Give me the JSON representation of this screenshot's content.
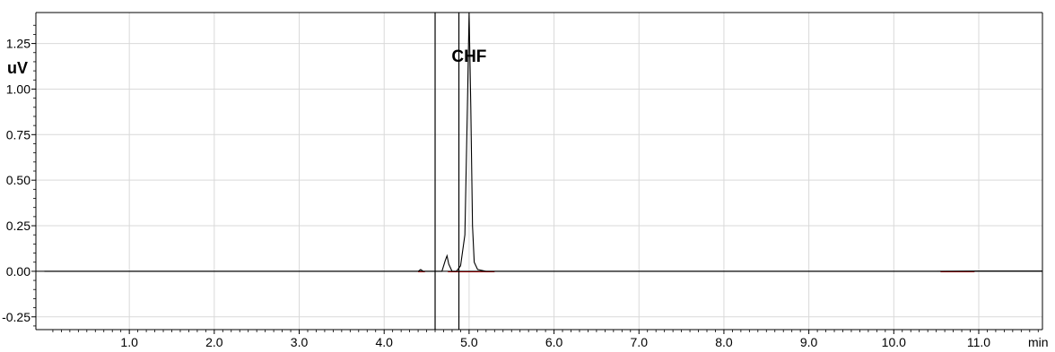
{
  "chart_data": {
    "type": "line",
    "title": "",
    "xlabel": "min",
    "ylabel": "uV",
    "xlim": [
      -0.1,
      11.75
    ],
    "ylim": [
      -0.32,
      1.42
    ],
    "x_ticks": [
      1.0,
      2.0,
      3.0,
      4.0,
      5.0,
      6.0,
      7.0,
      8.0,
      9.0,
      10.0,
      11.0
    ],
    "x_tick_labels": [
      "1.0",
      "2.0",
      "3.0",
      "4.0",
      "5.0",
      "6.0",
      "7.0",
      "8.0",
      "9.0",
      "10.0",
      "11.0"
    ],
    "y_ticks": [
      -0.25,
      0.0,
      0.25,
      0.5,
      0.75,
      1.0,
      1.25
    ],
    "y_tick_labels": [
      "-0.25",
      "0.00",
      "0.25",
      "0.50",
      "0.75",
      "1.00",
      "1.25"
    ],
    "grid": true,
    "colors": {
      "signal": "#000000",
      "baseline_marker": "#e00000",
      "grid": "#d9d9d9"
    },
    "vertical_markers": [
      4.6,
      4.88
    ],
    "annotations": [
      {
        "text": "CHF",
        "x": 5.0,
        "y": 1.15
      }
    ],
    "series": [
      {
        "x": [
          0.0,
          4.3,
          4.4,
          4.43,
          4.46,
          4.5,
          4.6,
          4.68,
          4.72,
          4.74,
          4.76,
          4.8,
          4.85,
          4.9,
          4.95,
          4.98,
          5.0,
          5.02,
          5.04,
          5.06,
          5.1,
          5.2,
          5.5,
          7.0,
          9.0,
          10.5,
          11.0,
          11.75
        ],
        "y": [
          0.0,
          0.0,
          0.0,
          0.01,
          0.0,
          0.0,
          0.0,
          0.0,
          0.06,
          0.085,
          0.04,
          0.0,
          0.0,
          0.03,
          0.2,
          0.9,
          1.42,
          0.9,
          0.25,
          0.05,
          0.01,
          0.0,
          0.0,
          0.0,
          0.0,
          0.0,
          0.002,
          0.002
        ]
      }
    ],
    "baseline_segments": [
      [
        4.4,
        4.48
      ],
      [
        4.75,
        5.3
      ],
      [
        10.55,
        10.95
      ]
    ]
  }
}
